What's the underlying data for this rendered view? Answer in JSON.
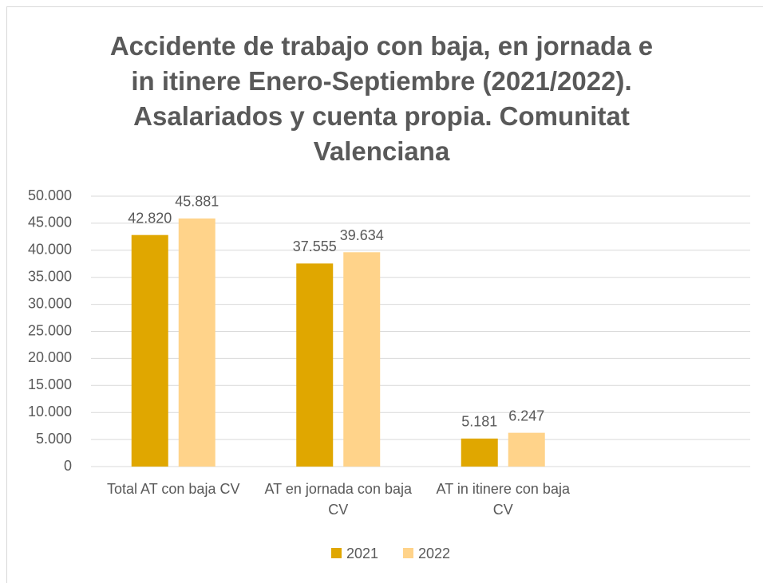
{
  "chart_data": {
    "type": "bar",
    "title": "Accidente de trabajo con baja, en jornada e in itinere Enero-Septiembre (2021/2022). Asalariados y cuenta propia. Comunitat Valenciana",
    "categories": [
      "Total AT con baja CV",
      "AT en jornada con baja CV",
      "AT in itinere con baja CV",
      null
    ],
    "series": [
      {
        "name": "2021",
        "color": "#e0a700",
        "values": [
          42820,
          37555,
          5181,
          null
        ],
        "value_labels": [
          "42.820",
          "37.555",
          "5.181",
          null
        ]
      },
      {
        "name": "2022",
        "color": "#ffd38a",
        "values": [
          45881,
          39634,
          6247,
          null
        ],
        "value_labels": [
          "45.881",
          "39.634",
          "6.247",
          null
        ]
      }
    ],
    "ylim": [
      0,
      50000
    ],
    "yticks": [
      0,
      {
        "value": 5000,
        "label": "5.000"
      },
      {
        "value": 10000,
        "label": "10.000"
      },
      {
        "value": 15000,
        "label": "15.000"
      },
      {
        "value": 20000,
        "label": "20.000"
      },
      {
        "value": 25000,
        "label": "25.000"
      },
      {
        "value": 30000,
        "label": "30.000"
      },
      {
        "value": 35000,
        "label": "35.000"
      },
      {
        "value": 40000,
        "label": "40.000"
      },
      {
        "value": 45000,
        "label": "45.000"
      },
      {
        "value": 50000,
        "label": "50.000"
      }
    ],
    "grid": true,
    "legend": "bottom"
  }
}
